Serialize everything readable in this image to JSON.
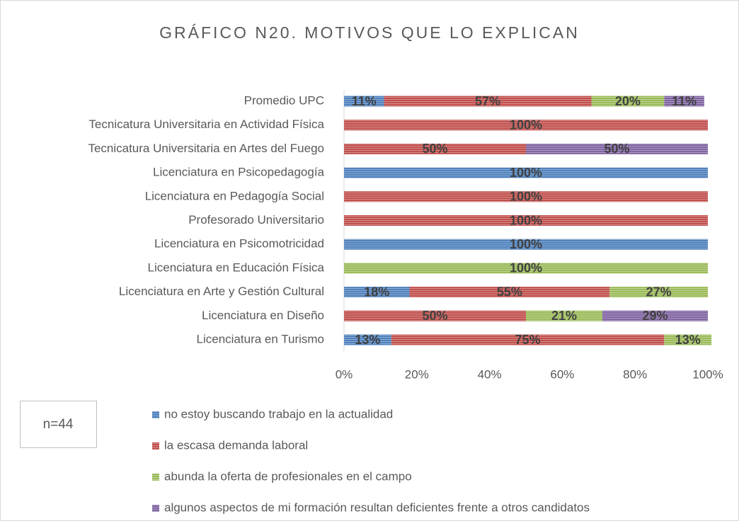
{
  "chart_data": {
    "type": "stacked_barh",
    "title": "GRÁFICO N20. MOTIVOS QUE LO EXPLICAN",
    "annotation": "n=44",
    "categories": [
      "Promedio UPC",
      "Tecnicatura Universitaria en Actividad Física",
      "Tecnicatura Universitaria en Artes del Fuego",
      "Licenciatura en Psicopedagogía",
      "Licenciatura en Pedagogía Social",
      "Profesorado Universitario",
      "Licenciatura en Psicomotricidad",
      "Licenciatura en Educación Física",
      "Licenciatura en Arte y Gestión Cultural",
      "Licenciatura en Diseño",
      "Licenciatura en Turismo"
    ],
    "series": [
      {
        "name": "no estoy buscando trabajo en la actualidad",
        "color": "#4f81bd",
        "values": [
          11,
          null,
          null,
          100,
          null,
          null,
          100,
          null,
          18,
          null,
          13
        ],
        "value_labels": [
          "11%",
          null,
          null,
          "100%",
          null,
          null,
          "100%",
          null,
          "18%",
          null,
          "13%"
        ]
      },
      {
        "name": "la escasa demanda laboral",
        "color": "#c0504d",
        "values": [
          57,
          100,
          50,
          null,
          100,
          100,
          null,
          null,
          55,
          50,
          75
        ],
        "value_labels": [
          "57%",
          "100%",
          "50%",
          null,
          "100%",
          "100%",
          null,
          null,
          "55%",
          "50%",
          "75%"
        ]
      },
      {
        "name": "abunda la oferta de profesionales en el campo",
        "color": "#9bbb59",
        "values": [
          20,
          null,
          null,
          null,
          null,
          null,
          null,
          100,
          27,
          21,
          13
        ],
        "value_labels": [
          "20%",
          null,
          null,
          null,
          null,
          null,
          null,
          "100%",
          "27%",
          "21%",
          "13%"
        ]
      },
      {
        "name": "algunos aspectos de mi formación resultan deficientes frente a otros candidatos",
        "color": "#8064a2",
        "values": [
          11,
          null,
          50,
          null,
          null,
          null,
          null,
          null,
          null,
          29,
          null
        ],
        "value_labels": [
          "11%",
          null,
          "50%",
          null,
          null,
          null,
          null,
          null,
          null,
          "29%",
          null
        ]
      }
    ],
    "xlim": [
      0,
      100
    ],
    "xticks": [
      {
        "value": 0,
        "label": "0%"
      },
      {
        "value": 20,
        "label": "20%"
      },
      {
        "value": 40,
        "label": "40%"
      },
      {
        "value": 60,
        "label": "60%"
      },
      {
        "value": 80,
        "label": "80%"
      },
      {
        "value": 100,
        "label": "100%"
      }
    ],
    "grid": false,
    "legend": "bottom"
  }
}
